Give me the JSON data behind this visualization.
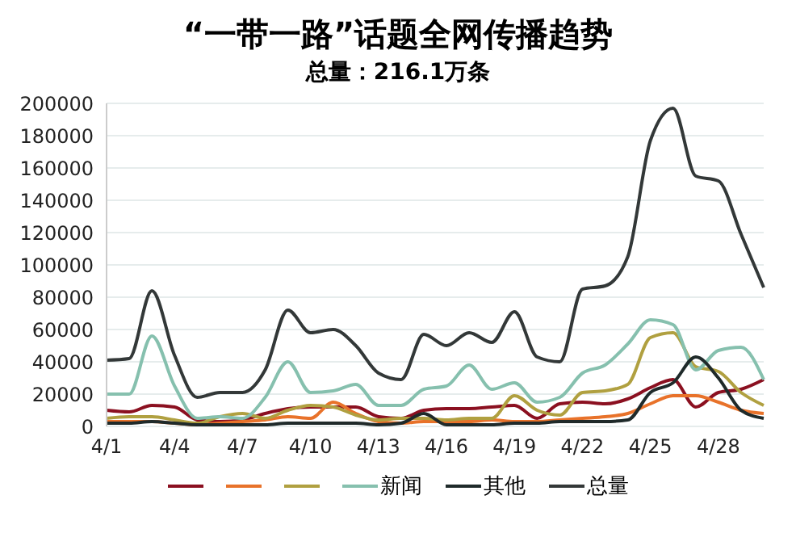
{
  "chart_data": {
    "type": "line",
    "title": "“一带一路”话题全网传播趋势",
    "subtitle": "总量：216.1万条",
    "categories": [
      "4/1",
      null,
      null,
      "4/4",
      null,
      null,
      "4/7",
      null,
      null,
      "4/10",
      null,
      null,
      "4/13",
      null,
      null,
      "4/16",
      null,
      null,
      "4/19",
      null,
      null,
      "4/22",
      null,
      null,
      "4/25",
      null,
      null,
      "4/28",
      null,
      null
    ],
    "series": [
      {
        "color": "#8b1020",
        "values": [
          10000,
          9000,
          13000,
          12000,
          4000,
          3000,
          4000,
          8000,
          11000,
          12000,
          12000,
          12000,
          6000,
          5000,
          10000,
          11000,
          11000,
          12000,
          13000,
          5000,
          14000,
          15000,
          14000,
          17000,
          24000,
          29000,
          12000,
          21000,
          23000,
          29000
        ]
      },
      {
        "color": "#e8722a",
        "values": [
          3000,
          3000,
          3000,
          2000,
          1000,
          2000,
          3000,
          4000,
          6000,
          5000,
          15000,
          8000,
          3000,
          2000,
          3000,
          3000,
          3000,
          4000,
          3000,
          3000,
          4000,
          5000,
          6000,
          8000,
          14000,
          19000,
          19000,
          15000,
          10000,
          8000
        ]
      },
      {
        "color": "#b0a040",
        "values": [
          5000,
          6000,
          6000,
          4000,
          2000,
          6000,
          8000,
          5000,
          10000,
          13000,
          12000,
          7000,
          4000,
          5000,
          5000,
          4000,
          5000,
          5000,
          19000,
          10000,
          7000,
          21000,
          22000,
          26000,
          55000,
          58000,
          37000,
          34000,
          21000,
          13000
        ]
      },
      {
        "name": "新闻",
        "color": "#86c0ae",
        "values": [
          20000,
          20000,
          56000,
          25000,
          5000,
          6000,
          5000,
          18000,
          40000,
          21000,
          22000,
          26000,
          13000,
          13000,
          23000,
          25000,
          38000,
          23000,
          27000,
          15000,
          18000,
          33000,
          38000,
          51000,
          66000,
          63000,
          35000,
          47000,
          49000,
          29000
        ]
      },
      {
        "name": "其他",
        "color": "#1f2a2a",
        "values": [
          2000,
          2000,
          3000,
          2000,
          1000,
          1000,
          1000,
          1000,
          2000,
          2000,
          2000,
          2000,
          1000,
          2000,
          8000,
          1000,
          1000,
          1000,
          2000,
          2000,
          3000,
          3000,
          3000,
          4000,
          21000,
          27000,
          43000,
          30000,
          10000,
          5000
        ]
      },
      {
        "name": "总量",
        "color": "#333838",
        "values": [
          41000,
          42000,
          84000,
          44000,
          18000,
          21000,
          21000,
          35000,
          72000,
          58000,
          60000,
          50000,
          33000,
          29000,
          57000,
          50000,
          58000,
          52000,
          71000,
          43000,
          40000,
          85000,
          87000,
          105000,
          177000,
          197000,
          155000,
          152000,
          119000,
          86000
        ]
      }
    ],
    "ylim": [
      0,
      200000
    ],
    "yticks": [
      0,
      20000,
      40000,
      60000,
      80000,
      100000,
      120000,
      140000,
      160000,
      180000,
      200000
    ],
    "grid": "y",
    "legend": "bottom",
    "marker": "none",
    "line_style": "solid"
  }
}
